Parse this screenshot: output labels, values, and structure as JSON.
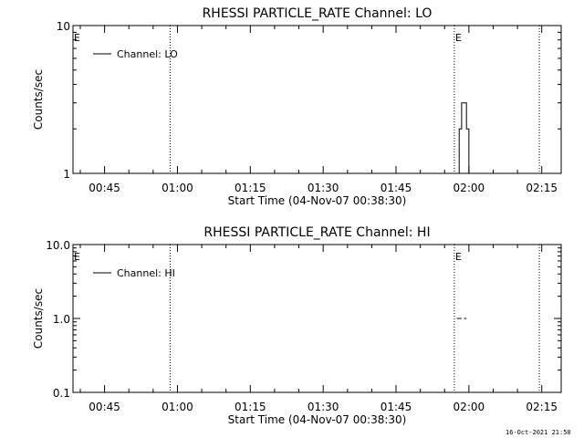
{
  "chart_data": [
    {
      "type": "line",
      "title": "RHESSI PARTICLE_RATE Channel: LO",
      "xlabel": "Start Time (04-Nov-07 00:38:30)",
      "ylabel": "Counts/sec",
      "y_scale": "log",
      "ylim": [
        1,
        10
      ],
      "xlim": [
        "00:38:30",
        "02:19:00"
      ],
      "x_tick_labels": [
        "00:45",
        "01:00",
        "01:15",
        "01:30",
        "01:45",
        "02:00",
        "02:15"
      ],
      "y_tick_labels": [
        "1",
        "10"
      ],
      "legend": {
        "entries": [
          "Channel: LO"
        ],
        "placement": "top-left"
      },
      "event_markers": [
        {
          "time": "00:58:30",
          "label": "E"
        },
        {
          "time": "01:57:00",
          "label": ""
        },
        {
          "time": "02:14:30",
          "label": ""
        }
      ],
      "edge_labels": [
        {
          "time": "00:38:30",
          "text": "E"
        },
        {
          "time": "01:57:00",
          "text": "E"
        }
      ],
      "series": [
        {
          "name": "Channel: LO",
          "points": [
            [
              "01:57:30",
              1
            ],
            [
              "01:58:00",
              2
            ],
            [
              "01:58:30",
              3
            ],
            [
              "01:59:00",
              3
            ],
            [
              "01:59:30",
              2
            ],
            [
              "02:00:00",
              1
            ]
          ]
        }
      ],
      "grid": false
    },
    {
      "type": "line",
      "title": "RHESSI PARTICLE_RATE Channel: HI",
      "xlabel": "Start Time (04-Nov-07 00:38:30)",
      "ylabel": "Counts/sec",
      "y_scale": "log",
      "ylim": [
        0.1,
        10
      ],
      "xlim": [
        "00:38:30",
        "02:19:00"
      ],
      "x_tick_labels": [
        "00:45",
        "01:00",
        "01:15",
        "01:30",
        "01:45",
        "02:00",
        "02:15"
      ],
      "y_tick_labels": [
        "0.1",
        "1.0",
        "10.0"
      ],
      "legend": {
        "entries": [
          "Channel: HI"
        ],
        "placement": "top-left"
      },
      "event_markers": [
        {
          "time": "00:58:30",
          "label": ""
        },
        {
          "time": "01:57:00",
          "label": ""
        },
        {
          "time": "02:14:30",
          "label": ""
        }
      ],
      "edge_labels": [
        {
          "time": "00:38:30",
          "text": "E"
        },
        {
          "time": "01:57:00",
          "text": "E"
        }
      ],
      "series": [
        {
          "name": "Channel: HI",
          "segments": [
            [
              [
                "01:57:30",
                1.0
              ],
              [
                "01:58:30",
                1.0
              ]
            ],
            [
              [
                "01:59:00",
                1.0
              ],
              [
                "01:59:30",
                1.0
              ]
            ],
            [
              [
                "02:18:00",
                1.0
              ],
              [
                "02:19:00",
                1.0
              ]
            ]
          ]
        }
      ],
      "grid": false
    }
  ],
  "footer": {
    "timestamp": "16-Oct-2021 21:50"
  }
}
